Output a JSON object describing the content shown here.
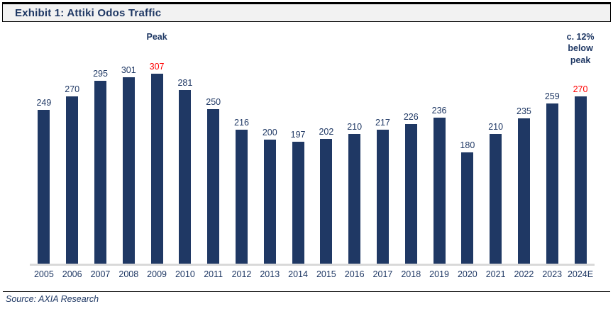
{
  "header": {
    "title": "Exhibit 1: Attiki Odos Traffic"
  },
  "chart_data": {
    "type": "bar",
    "title": "Exhibit 1: Attiki Odos Traffic",
    "categories": [
      "2005",
      "2006",
      "2007",
      "2008",
      "2009",
      "2010",
      "2011",
      "2012",
      "2013",
      "2014",
      "2015",
      "2016",
      "2017",
      "2018",
      "2019",
      "2020",
      "2021",
      "2022",
      "2023",
      "2024E"
    ],
    "values": [
      249,
      270,
      295,
      301,
      307,
      281,
      250,
      216,
      200,
      197,
      202,
      210,
      217,
      226,
      236,
      180,
      210,
      235,
      259,
      270
    ],
    "xlabel": "",
    "ylabel": "",
    "ylim": [
      0,
      340
    ],
    "grid": false,
    "legend": false,
    "data_labels": true,
    "red_label_indexes": [
      4,
      19
    ],
    "bar_color": "#1F3864",
    "label_color": "#1F3864",
    "highlight_color": "#FF0000",
    "baseline_color": "#d9d9d9",
    "annotations": [
      {
        "text": "Peak",
        "category": "2009",
        "position": "top"
      },
      {
        "text": "c. 12%\nbelow\npeak",
        "category": "2024E",
        "position": "top"
      }
    ]
  },
  "annotations": {
    "peak": "Peak",
    "below_peak": "c. 12%\nbelow\npeak"
  },
  "footer": {
    "source": "Source: AXIA Research"
  }
}
